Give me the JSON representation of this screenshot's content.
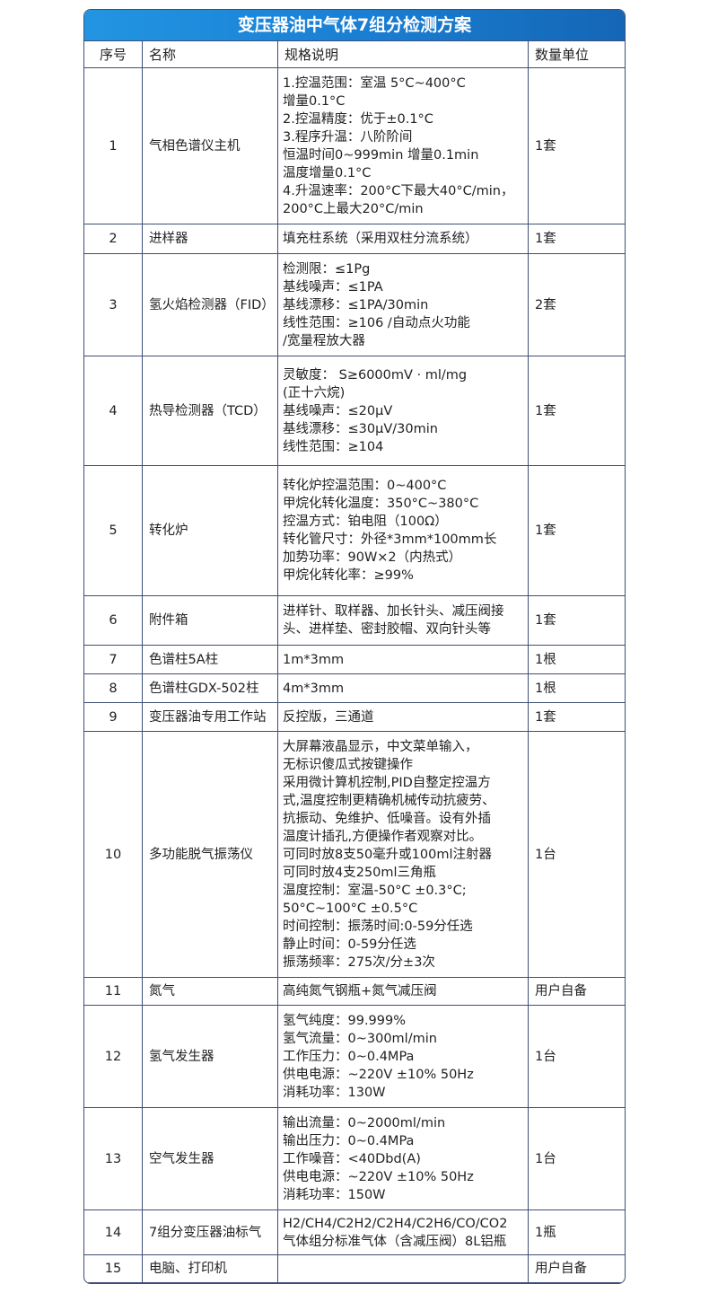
{
  "title": "变压器油中气体7组分检测方案",
  "headers": [
    "序号",
    "名称",
    "规格说明",
    "数量单位"
  ],
  "rows": [
    {
      "no": "1",
      "name": "气相色谱仪主机",
      "spec": "1.控温范围：室温 5°C~400°C\n增量0.1°C\n2.控温精度：优于±0.1°C\n3.程序升温：八阶阶间\n恒温时间0~999min 增量0.1min\n温度增量0.1°C\n4.升温速率：200°C下最大40°C/min，\n200°C上最大20°C/min",
      "qty": "1套"
    },
    {
      "no": "2",
      "name": "进样器",
      "spec": "填充柱系统（采用双柱分流系统）",
      "qty": "1套"
    },
    {
      "no": "3",
      "name": "氢火焰检测器（FID）",
      "spec": "检测限：≤1Pg\n基线噪声：≤1PA\n基线漂移：≤1PA/30min\n线性范围：≥106 /自动点火功能\n/宽量程放大器",
      "qty": "2套"
    },
    {
      "no": "4",
      "name": "热导检测器（TCD）",
      "spec": "灵敏度： S≥6000mV · ml/mg\n(正十六烷)\n基线噪声：≤20μV\n基线漂移：≤30μV/30min\n线性范围：≥104",
      "qty": "1套"
    },
    {
      "no": "5",
      "name": "转化炉",
      "spec": "转化炉控温范围：0~400°C\n甲烷化转化温度：350°C~380°C\n控温方式：铂电阻（100Ω）\n转化管尺寸：外径*3mm*100mm长\n加势功率：90W×2（内热式）\n甲烷化转化率：≥99%",
      "qty": "1套"
    },
    {
      "no": "6",
      "name": "附件箱",
      "spec": "进样针、取样器、加长针头、减压阀接\n头、进样垫、密封胶帽、双向针头等",
      "qty": "1套"
    },
    {
      "no": "7",
      "name": "色谱柱5A柱",
      "spec": "1m*3mm",
      "qty": "1根"
    },
    {
      "no": "8",
      "name": "色谱柱GDX-502柱",
      "spec": "4m*3mm",
      "qty": "1根"
    },
    {
      "no": "9",
      "name": "变压器油专用工作站",
      "spec": "反控版，三通道",
      "qty": "1套"
    },
    {
      "no": "10",
      "name": "多功能脱气振荡仪",
      "spec": "大屏幕液晶显示，中文菜单输入，\n无标识傻瓜式按键操作\n采用微计算机控制,PID自整定控温方\n式,温度控制更精确机械传动抗疲劳、\n抗振动、免维护、低噪音。设有外插\n温度计插孔,方便操作者观察对比。\n可同时放8支50毫升或100ml注射器\n可同时放4支250ml三角瓶\n温度控制：室温-50°C ±0.3°C;\n 50°C~100°C ±0.5°C\n时间控制：振荡时间:0-59分任选\n静止时间：0-59分任选\n振荡频率：275次/分±3次",
      "qty": "1台"
    },
    {
      "no": "11",
      "name": "氮气",
      "spec": "高纯氮气钢瓶+氮气减压阀",
      "qty": "用户自备"
    },
    {
      "no": "12",
      "name": "氢气发生器",
      "spec": "氢气纯度：99.999%\n氢气流量：0~300ml/min\n工作压力：0~0.4MPa\n供电电源：~220V ±10% 50Hz\n消耗功率：130W",
      "qty": "1台"
    },
    {
      "no": "13",
      "name": "空气发生器",
      "spec": "输出流量：0~2000ml/min\n输出压力：0~0.4MPa\n工作噪音：<40Dbd(A)\n供电电源：~220V ±10% 50Hz\n消耗功率：150W",
      "qty": "1台"
    },
    {
      "no": "14",
      "name": "7组分变压器油标气",
      "spec": "H2/CH4/C2H2/C2H4/C2H6/CO/CO2\n气体组分标准气体（含减压阀）8L铝瓶",
      "qty": "1瓶"
    },
    {
      "no": "15",
      "name": "电脑、打印机",
      "spec": "",
      "qty": "用户自备"
    }
  ]
}
